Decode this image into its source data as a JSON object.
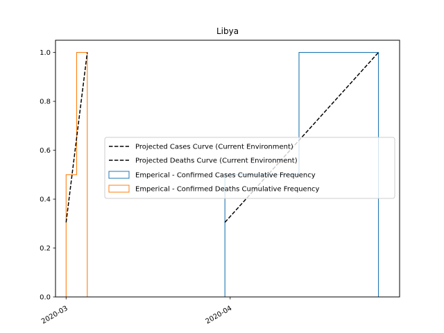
{
  "chart_data": {
    "type": "line",
    "title": "Libya",
    "xlabel": "",
    "ylabel": "",
    "x_tick_labels": [
      "2020-03",
      "2020-04"
    ],
    "x_ticks": [
      "2020-03-01",
      "2020-04-01"
    ],
    "x_range": [
      "2020-02-28",
      "2020-05-03"
    ],
    "y_ticks": [
      0.0,
      0.2,
      0.4,
      0.6,
      0.8,
      1.0
    ],
    "y_tick_labels": [
      "0.0",
      "0.2",
      "0.4",
      "0.6",
      "0.8",
      "1.0"
    ],
    "ylim": [
      0.0,
      1.05
    ],
    "grid": false,
    "legend_position": "center-right",
    "series": [
      {
        "name": "Projected Cases Curve (Current Environment)",
        "style": "dashed",
        "color": "#000000",
        "points": [
          [
            "2020-03-31",
            0.305
          ],
          [
            "2020-04-29",
            1.0
          ]
        ]
      },
      {
        "name": "Projected Deaths Curve (Current Environment)",
        "style": "dashed",
        "color": "#000000",
        "points": [
          [
            "2020-03-01",
            0.305
          ],
          [
            "2020-03-05",
            1.0
          ]
        ]
      },
      {
        "name": "Emperical - Confirmed Cases Cumulative Frequency",
        "style": "step",
        "color": "#1f77b4",
        "points": [
          [
            "2020-03-31",
            0.0
          ],
          [
            "2020-03-31",
            0.5
          ],
          [
            "2020-04-14",
            0.5
          ],
          [
            "2020-04-14",
            1.0
          ],
          [
            "2020-04-29",
            1.0
          ],
          [
            "2020-04-29",
            0.0
          ]
        ]
      },
      {
        "name": "Emperical - Confirmed Deaths Cumulative Frequency",
        "style": "step",
        "color": "#ff7f0e",
        "points": [
          [
            "2020-03-01",
            0.0
          ],
          [
            "2020-03-01",
            0.5
          ],
          [
            "2020-03-03",
            0.5
          ],
          [
            "2020-03-03",
            1.0
          ],
          [
            "2020-03-05",
            1.0
          ],
          [
            "2020-03-05",
            0.0
          ]
        ]
      }
    ]
  }
}
